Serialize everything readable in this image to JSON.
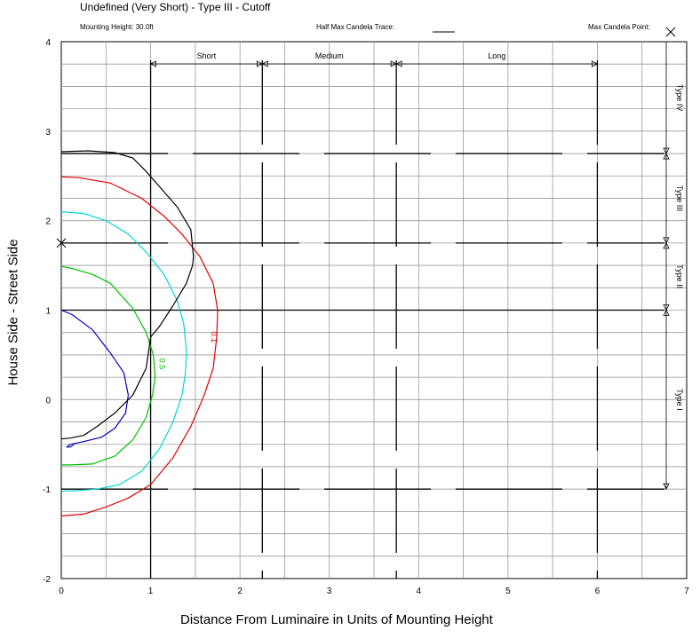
{
  "chart_data": {
    "type": "line",
    "title": "Undefined (Very Short) - Type III - Cutoff",
    "header": {
      "mounting_height": "Mounting Height: 30.0ft",
      "half_max_trace_label": "Half Max Candela Trace:",
      "max_candela_point_label": "Max Candela Point:"
    },
    "xlabel": "Distance From Luminaire in Units of Mounting Height",
    "ylabel": "House Side  - Street Side",
    "xlim": [
      0,
      7
    ],
    "ylim": [
      -2,
      4
    ],
    "x_ticks": [
      "0",
      "1",
      "2",
      "3",
      "4",
      "5",
      "6",
      "7"
    ],
    "y_ticks": [
      "-2",
      "-1",
      "0",
      "1",
      "2",
      "3",
      "4"
    ],
    "grid": true,
    "distance_zones": [
      {
        "label": "Short",
        "from": 1.0,
        "to": 2.25
      },
      {
        "label": "Medium",
        "from": 2.25,
        "to": 3.75
      },
      {
        "label": "Long",
        "from": 3.75,
        "to": 6.0
      }
    ],
    "type_zones": [
      {
        "label": "Type IV",
        "from": 2.75,
        "to": 4.0
      },
      {
        "label": "Type III",
        "from": 1.75,
        "to": 2.75
      },
      {
        "label": "Type II",
        "from": 1.0,
        "to": 1.75
      },
      {
        "label": "Type I",
        "from": -1.0,
        "to": 1.0
      }
    ],
    "max_candela_point": [
      0,
      1.75
    ],
    "series": [
      {
        "name": "0.1",
        "color": "#e00000",
        "label_at": [
          1.68,
          0.7
        ],
        "x": [
          0,
          0.2,
          0.55,
          0.9,
          1.15,
          1.35,
          1.55,
          1.7,
          1.75,
          1.74,
          1.7,
          1.6,
          1.45,
          1.25,
          1.0,
          0.75,
          0.5,
          0.25,
          0
        ],
        "y": [
          2.49,
          2.48,
          2.42,
          2.25,
          2.05,
          1.85,
          1.6,
          1.3,
          1.0,
          0.7,
          0.35,
          0.05,
          -0.3,
          -0.65,
          -0.95,
          -1.1,
          -1.2,
          -1.28,
          -1.3
        ]
      },
      {
        "name": "",
        "color": "#00d8d8",
        "x": [
          0,
          0.25,
          0.5,
          0.75,
          0.95,
          1.15,
          1.3,
          1.37,
          1.4,
          1.39,
          1.35,
          1.25,
          1.1,
          0.9,
          0.65,
          0.4,
          0.15,
          0.05,
          0
        ],
        "y": [
          2.1,
          2.08,
          2.0,
          1.85,
          1.65,
          1.4,
          1.1,
          0.85,
          0.55,
          0.3,
          0.05,
          -0.25,
          -0.55,
          -0.8,
          -0.95,
          -1.0,
          -1.02,
          -1.02,
          -1.03
        ]
      },
      {
        "name": "0.5",
        "color": "#00c000",
        "label_at": [
          1.1,
          0.4
        ],
        "x": [
          0,
          0.1,
          0.35,
          0.55,
          0.8,
          0.95,
          1.03,
          1.05,
          1.02,
          0.95,
          0.8,
          0.6,
          0.35,
          0.1,
          0
        ],
        "y": [
          1.49,
          1.47,
          1.4,
          1.3,
          1.02,
          0.75,
          0.5,
          0.25,
          0.05,
          -0.2,
          -0.45,
          -0.63,
          -0.72,
          -0.73,
          -0.73
        ]
      },
      {
        "name": "",
        "color": "#0000c0",
        "x": [
          0,
          0.12,
          0.35,
          0.55,
          0.7,
          0.75,
          0.72,
          0.6,
          0.45,
          0.25,
          0.1,
          0.06,
          0.1,
          0.14
        ],
        "y": [
          1.0,
          0.95,
          0.78,
          0.52,
          0.3,
          0.05,
          -0.15,
          -0.32,
          -0.42,
          -0.47,
          -0.5,
          -0.53,
          -0.53,
          -0.5
        ]
      },
      {
        "name": "Half Max",
        "color": "#000000",
        "x": [
          0,
          0.3,
          0.6,
          0.8,
          0.95,
          1.1,
          1.3,
          1.45,
          1.48,
          1.47,
          1.4,
          1.25,
          1.1,
          1.0,
          0.95,
          0.8,
          0.6,
          0.4,
          0.25,
          0.1,
          0
        ],
        "y": [
          2.77,
          2.78,
          2.76,
          2.7,
          2.55,
          2.38,
          2.15,
          1.9,
          1.6,
          1.5,
          1.3,
          1.05,
          0.82,
          0.7,
          0.35,
          0.05,
          -0.15,
          -0.3,
          -0.4,
          -0.43,
          -0.44
        ]
      }
    ]
  }
}
